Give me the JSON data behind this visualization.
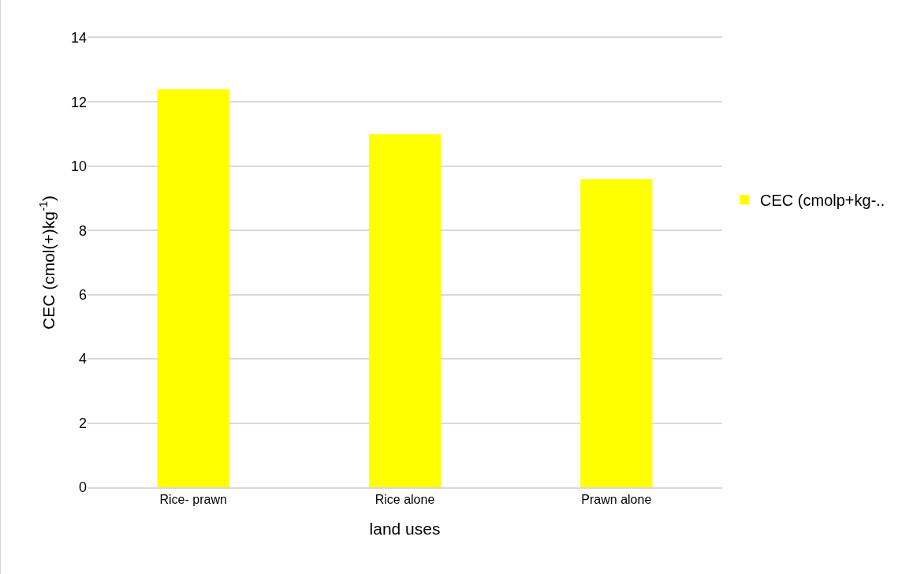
{
  "chart_data": {
    "type": "bar",
    "xlabel": "land uses",
    "ylabel": "CEC (cmol(+)kg$^{-1}$)",
    "categories": [
      "Rice- prawn",
      "Rice alone",
      "Prawn alone"
    ],
    "series": [
      {
        "name": "CEC (cmolp+kg-..",
        "color": "#ffff00",
        "values": [
          12.4,
          11.0,
          9.6
        ]
      }
    ],
    "ylim": [
      0,
      14
    ],
    "yticks": [
      0,
      2,
      4,
      6,
      8,
      10,
      12,
      14
    ],
    "grid": "y",
    "legend": "right"
  }
}
